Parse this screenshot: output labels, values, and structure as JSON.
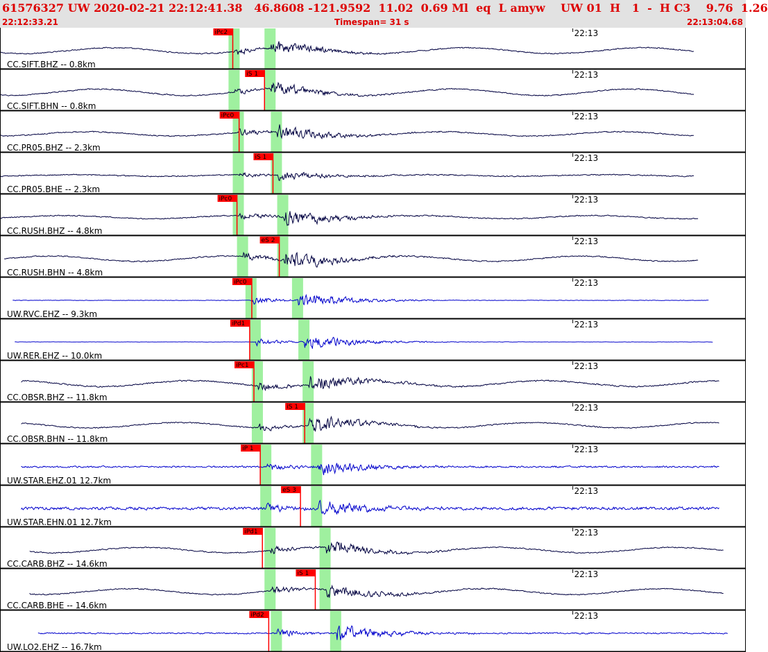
{
  "header": {
    "title": "61576327 UW 2020-02-21 22:12:41.38   46.8608 -121.9592  11.02  0.69 Ml  eq  L amyw    UW 01  H   1  -  H C3    9.76  1.26",
    "start_time": "22:12:33.21",
    "timespan": "Timespan=  31 s",
    "end_time": "22:13:04.68"
  },
  "colors": {
    "trace_cc": "#000040",
    "trace_uw": "#0000cc",
    "window": "#9ff09f",
    "pick": "#ff0000",
    "separator": "#000000"
  },
  "chart_data": {
    "type": "line",
    "time_range": [
      "22:12:33.21",
      "22:13:04.68"
    ],
    "tick_label": "22:13",
    "tick_time_s": 27.07,
    "traces": [
      {
        "label": "CC.SIFT.BHZ -- 0.8km",
        "net": "CC",
        "p_window": 10.8,
        "s_window": 12.5,
        "pick": {
          "label": "iPc2",
          "time": 11.0,
          "type": "P"
        },
        "noise": 0.1,
        "quake": 0.8,
        "swell": 0.55,
        "start": 0.0,
        "end": 32.8
      },
      {
        "label": "CC.SIFT.BHN -- 0.8km",
        "net": "CC",
        "p_window": 10.8,
        "s_window": 12.5,
        "pick": {
          "label": "iS 1",
          "time": 12.5,
          "type": "S"
        },
        "noise": 0.1,
        "quake": 0.75,
        "swell": 0.6,
        "start": 0.0,
        "end": 32.8
      },
      {
        "label": "CC.PR05.BHZ -- 2.3km",
        "net": "CC",
        "p_window": 11.0,
        "s_window": 12.8,
        "pick": {
          "label": "iPc0",
          "time": 11.3,
          "type": "P"
        },
        "noise": 0.1,
        "quake": 0.85,
        "swell": 0.4,
        "start": 0.0,
        "end": 32.8
      },
      {
        "label": "CC.PR05.BHE -- 2.3km",
        "net": "CC",
        "p_window": 11.0,
        "s_window": 12.8,
        "pick": {
          "label": "iS 1",
          "time": 12.9,
          "type": "S"
        },
        "noise": 0.1,
        "quake": 0.6,
        "swell": 0.15,
        "start": 0.0,
        "end": 32.8
      },
      {
        "label": "CC.RUSH.BHZ -- 4.8km",
        "net": "CC",
        "p_window": 11.0,
        "s_window": 13.1,
        "pick": {
          "label": "iPc0",
          "time": 11.2,
          "type": "P"
        },
        "noise": 0.1,
        "quake": 0.95,
        "swell": 0.3,
        "start": 0.0,
        "end": 33.0
      },
      {
        "label": "CC.RUSH.BHN -- 4.8km",
        "net": "CC",
        "p_window": 11.2,
        "s_window": 13.1,
        "pick": {
          "label": "eS 2",
          "time": 13.2,
          "type": "S"
        },
        "noise": 0.1,
        "quake": 1.0,
        "swell": 0.5,
        "start": 0.2,
        "end": 33.0
      },
      {
        "label": "UW.RVC.EHZ -- 9.3km",
        "net": "UW",
        "p_window": 11.6,
        "s_window": 13.8,
        "pick": {
          "label": "iPc0",
          "time": 11.9,
          "type": "P"
        },
        "noise": 0.04,
        "quake": 0.85,
        "swell": 0.0,
        "start": 0.6,
        "end": 33.5
      },
      {
        "label": "UW.RER.EHZ -- 10.0km",
        "net": "UW",
        "p_window": 11.8,
        "s_window": 14.1,
        "pick": {
          "label": "iPd1",
          "time": 11.8,
          "type": "P"
        },
        "noise": 0.02,
        "quake": 0.8,
        "swell": 0.0,
        "start": 0.7,
        "end": 33.7
      },
      {
        "label": "CC.OBSR.BHZ -- 11.8km",
        "net": "CC",
        "p_window": 11.9,
        "s_window": 14.3,
        "pick": {
          "label": "iPc1",
          "time": 12.0,
          "type": "P"
        },
        "noise": 0.12,
        "quake": 1.0,
        "swell": 0.55,
        "start": 1.0,
        "end": 34.0
      },
      {
        "label": "CC.OBSR.BHN -- 11.8km",
        "net": "CC",
        "p_window": 11.9,
        "s_window": 14.3,
        "pick": {
          "label": "iS 1",
          "time": 14.4,
          "type": "S"
        },
        "noise": 0.1,
        "quake": 0.95,
        "swell": 0.5,
        "start": 1.0,
        "end": 34.0
      },
      {
        "label": "UW.STAR.EHZ.01 12.7km",
        "net": "UW",
        "p_window": 12.3,
        "s_window": 14.7,
        "pick": {
          "label": "iP 1",
          "time": 12.3,
          "type": "P"
        },
        "noise": 0.15,
        "quake": 0.9,
        "swell": 0.0,
        "start": 1.0,
        "end": 34.0
      },
      {
        "label": "UW.STAR.EHN.01 12.7km",
        "net": "UW",
        "p_window": 12.3,
        "s_window": 14.7,
        "pick": {
          "label": "eS 3",
          "time": 14.2,
          "type": "S"
        },
        "noise": 0.25,
        "quake": 0.95,
        "swell": 0.0,
        "start": 1.0,
        "end": 34.0
      },
      {
        "label": "CC.CARB.BHZ -- 14.6km",
        "net": "CC",
        "p_window": 12.5,
        "s_window": 15.1,
        "pick": {
          "label": "iPd1",
          "time": 12.4,
          "type": "P"
        },
        "noise": 0.1,
        "quake": 0.9,
        "swell": 0.5,
        "start": 1.4,
        "end": 34.2
      },
      {
        "label": "CC.CARB.BHE -- 14.6km",
        "net": "CC",
        "p_window": 12.5,
        "s_window": 15.1,
        "pick": {
          "label": "iS 1",
          "time": 14.9,
          "type": "S"
        },
        "noise": 0.1,
        "quake": 0.85,
        "swell": 0.55,
        "start": 1.4,
        "end": 34.2
      },
      {
        "label": "UW.LO2.EHZ -- 16.7km",
        "net": "UW",
        "p_window": 12.8,
        "s_window": 15.6,
        "pick": {
          "label": "iPd2",
          "time": 12.7,
          "type": "P"
        },
        "noise": 0.12,
        "quake": 0.95,
        "swell": 0.0,
        "start": 1.8,
        "end": 34.4
      }
    ]
  }
}
